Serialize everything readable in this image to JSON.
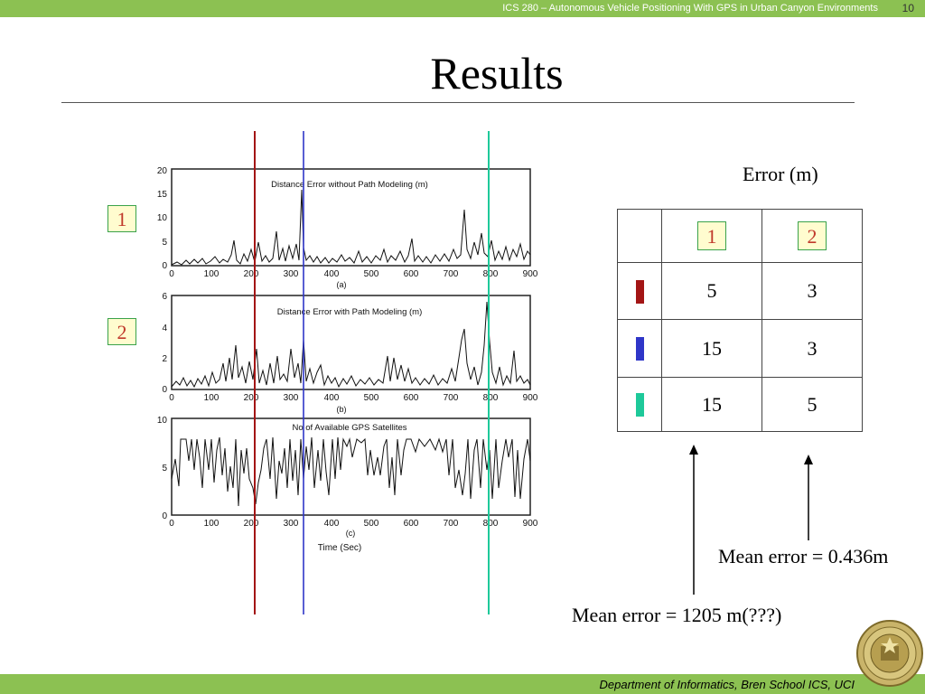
{
  "header": {
    "course_title": "ICS 280 – Autonomous Vehicle Positioning With GPS in Urban Canyon Environments",
    "page_number": "10"
  },
  "slide": {
    "title": "Results"
  },
  "footer": {
    "text": "Department of Informatics, Bren School ICS, UCI"
  },
  "colors": {
    "accent_green": "#8cc152",
    "marker_red": "#a31515",
    "marker_blue": "#2f36c8",
    "marker_teal": "#1ec99a"
  },
  "plots": {
    "labels": [
      "1",
      "2"
    ],
    "y_ticks_a": [
      "20",
      "15",
      "10",
      "5",
      "0"
    ],
    "y_ticks_b": [
      "6",
      "4",
      "2",
      "0"
    ],
    "y_ticks_c": [
      "10",
      "5",
      "0"
    ],
    "x_ticks": [
      "0",
      "100",
      "200",
      "300",
      "400",
      "500",
      "600",
      "700",
      "800",
      "900"
    ],
    "title_a": "Distance Error without Path Modeling (m)",
    "title_b": "Distance Error with Path Modeling (m)",
    "title_c": "No of Available GPS Satellites",
    "sub_a": "(a)",
    "sub_b": "(b)",
    "sub_c": "(c)",
    "xlabel": "Time (Sec)"
  },
  "error_table": {
    "title": "Error (m)",
    "col1": "1",
    "col2": "2",
    "rows": [
      {
        "color": "#a31515",
        "v1": "5",
        "v2": "3"
      },
      {
        "color": "#2f36c8",
        "v1": "15",
        "v2": "3"
      },
      {
        "color": "#1ec99a",
        "v1": "15",
        "v2": "5"
      }
    ]
  },
  "annotations": {
    "mean1": "Mean error = 1205 m(???)",
    "mean2": "Mean error = 0.436m"
  }
}
